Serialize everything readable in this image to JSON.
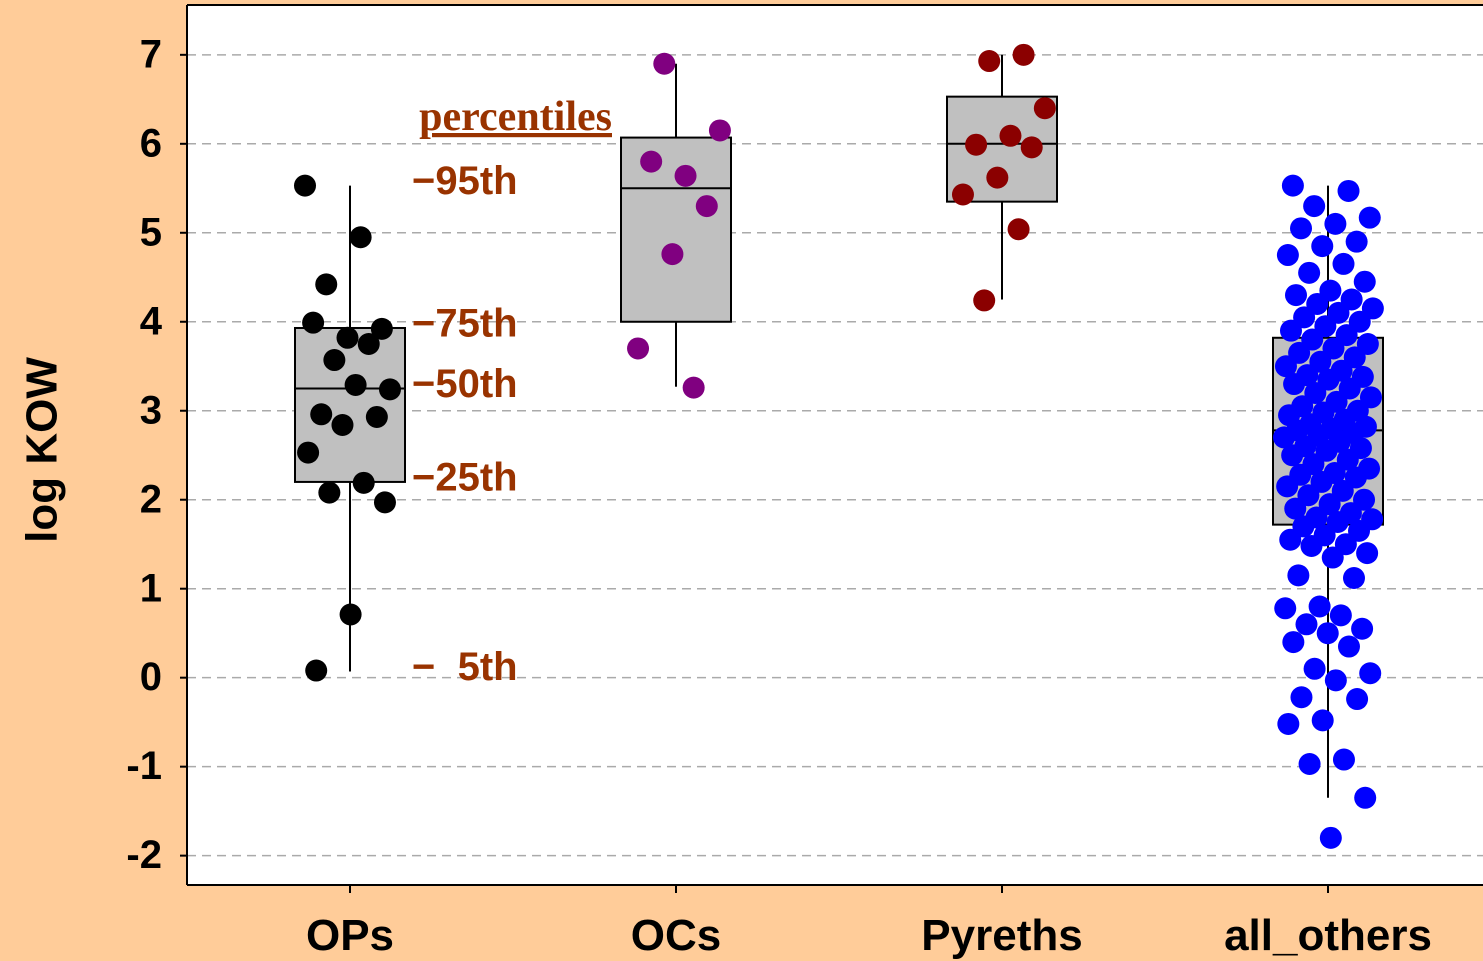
{
  "chart_data": {
    "type": "box",
    "y_label": "log KOW",
    "categories": [
      "OPs",
      "OCs",
      "Pyreths",
      "all_others"
    ],
    "ylim": [
      -2.33,
      7.56
    ],
    "yticks": [
      -2,
      -1,
      0,
      1,
      2,
      3,
      4,
      5,
      6,
      7
    ],
    "grid": true,
    "series": [
      {
        "color": "#000000",
        "box": {
          "whisker_low": 0.07,
          "q1": 2.2,
          "median": 3.25,
          "q3": 3.93,
          "whisker_high": 5.53
        },
        "points": [
          5.53,
          4.95,
          4.42,
          3.92,
          3.82,
          3.99,
          3.75,
          3.57,
          3.24,
          3.29,
          2.96,
          2.93,
          2.84,
          2.53,
          2.19,
          2.08,
          1.97,
          0.71,
          0.08
        ]
      },
      {
        "color": "#800080",
        "box": {
          "whisker_low": 3.27,
          "q1": 4.0,
          "median": 5.5,
          "q3": 6.07,
          "whisker_high": 6.9
        },
        "points": [
          6.9,
          6.15,
          5.64,
          5.8,
          5.3,
          4.76,
          3.7,
          3.26
        ]
      },
      {
        "color": "#8B0000",
        "box": {
          "whisker_low": 4.25,
          "q1": 5.35,
          "median": 6.0,
          "q3": 6.53,
          "whisker_high": 7.0
        },
        "points": [
          7.0,
          6.93,
          6.4,
          6.09,
          5.99,
          5.96,
          5.62,
          5.43,
          5.04,
          4.24
        ]
      },
      {
        "color": "#0000FF",
        "box": {
          "whisker_low": -1.35,
          "q1": 1.72,
          "median": 2.78,
          "q3": 3.82,
          "whisker_high": 5.53
        },
        "points": [
          5.53,
          5.47,
          5.3,
          5.17,
          5.1,
          5.05,
          4.9,
          4.85,
          4.75,
          4.65,
          4.55,
          4.45,
          4.35,
          4.3,
          4.25,
          4.2,
          4.15,
          4.1,
          4.05,
          4.0,
          3.95,
          3.9,
          3.85,
          3.8,
          3.75,
          3.7,
          3.65,
          3.6,
          3.55,
          3.5,
          3.45,
          3.4,
          3.38,
          3.35,
          3.3,
          3.25,
          3.2,
          3.15,
          3.1,
          3.05,
          3.0,
          2.98,
          2.95,
          2.9,
          2.85,
          2.82,
          2.8,
          2.78,
          2.75,
          2.72,
          2.7,
          2.65,
          2.6,
          2.58,
          2.55,
          2.5,
          2.45,
          2.4,
          2.35,
          2.3,
          2.28,
          2.25,
          2.2,
          2.15,
          2.1,
          2.05,
          2.0,
          1.95,
          1.9,
          1.85,
          1.8,
          1.78,
          1.75,
          1.7,
          1.65,
          1.6,
          1.55,
          1.5,
          1.48,
          1.4,
          1.35,
          1.15,
          1.12,
          0.8,
          0.78,
          0.7,
          0.6,
          0.55,
          0.5,
          0.4,
          0.35,
          0.1,
          0.05,
          -0.03,
          -0.22,
          -0.24,
          -0.48,
          -0.52,
          -0.92,
          -0.97,
          -1.35,
          -1.8
        ]
      }
    ],
    "annotations": {
      "title": "percentiles",
      "labels": [
        "−95th",
        "−75th",
        "−50th",
        "−25th",
        "−  5th"
      ]
    }
  }
}
